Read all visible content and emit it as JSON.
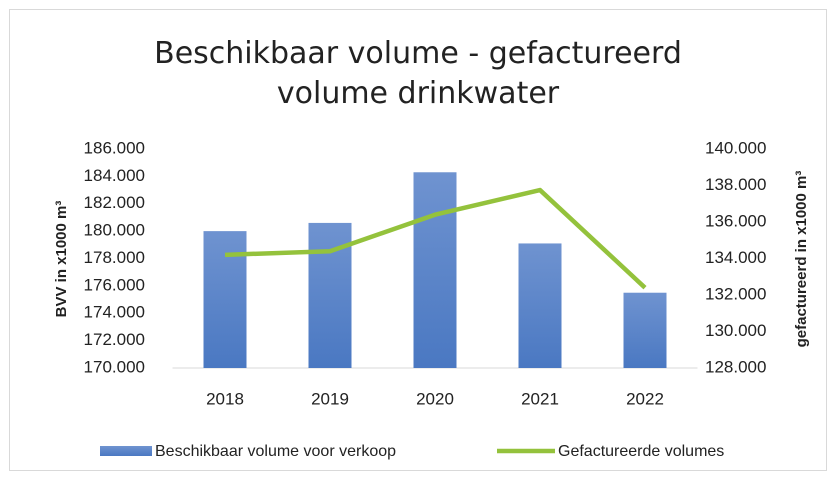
{
  "chart_data": {
    "type": "bar_line",
    "title": "Beschikbaar volume - gefactureerd volume drinkwater",
    "categories": [
      "2018",
      "2019",
      "2020",
      "2021",
      "2022"
    ],
    "series": [
      {
        "name": "Beschikbaar volume voor verkoop",
        "type": "bar",
        "color": "#4a78c2",
        "values": [
          180000,
          180600,
          184300,
          179100,
          175500
        ]
      },
      {
        "name": "Gefactureerde volumes",
        "type": "line",
        "axis": "y2",
        "color": "#94c23c",
        "values": [
          134200,
          134400,
          136400,
          137750,
          132400
        ]
      }
    ],
    "ylabel": "BVV in x1000 m³",
    "y2label": "gefactureerd in  x1000 m³",
    "ylim": [
      170000,
      186000
    ],
    "yticks": [
      {
        "value": 170000,
        "label": "170.000"
      },
      {
        "value": 172000,
        "label": "172.000"
      },
      {
        "value": 174000,
        "label": "174.000"
      },
      {
        "value": 176000,
        "label": "176.000"
      },
      {
        "value": 178000,
        "label": "178.000"
      },
      {
        "value": 180000,
        "label": "180.000"
      },
      {
        "value": 182000,
        "label": "182.000"
      },
      {
        "value": 184000,
        "label": "184.000"
      },
      {
        "value": 186000,
        "label": "186.000"
      }
    ],
    "y2lim": [
      128000,
      140000
    ],
    "y2ticks": [
      {
        "value": 128000,
        "label": "128.000"
      },
      {
        "value": 130000,
        "label": "130.000"
      },
      {
        "value": 132000,
        "label": "132.000"
      },
      {
        "value": 134000,
        "label": "134.000"
      },
      {
        "value": 136000,
        "label": "136.000"
      },
      {
        "value": 138000,
        "label": "138.000"
      },
      {
        "value": 140000,
        "label": "140.000"
      }
    ],
    "legend": "bottom"
  }
}
